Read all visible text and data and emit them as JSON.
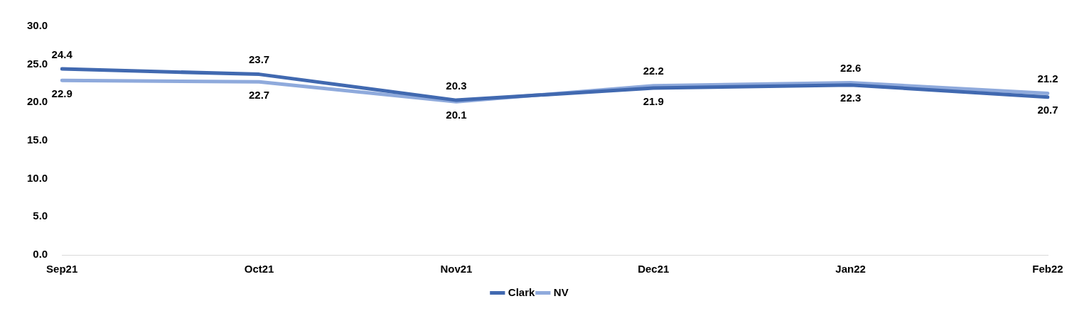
{
  "chart_data": {
    "type": "line",
    "categories": [
      "Sep21",
      "Oct21",
      "Nov21",
      "Dec21",
      "Jan22",
      "Feb22"
    ],
    "series": [
      {
        "name": "Clark",
        "color": "#4169b0",
        "values": [
          24.4,
          23.7,
          20.3,
          21.9,
          22.3,
          20.7
        ]
      },
      {
        "name": "NV",
        "color": "#8faadc",
        "values": [
          22.9,
          22.7,
          20.1,
          22.2,
          22.6,
          21.2
        ]
      }
    ],
    "ylim": [
      0,
      30
    ],
    "yticks": [
      {
        "value": 0,
        "label": "0.0"
      },
      {
        "value": 5,
        "label": "5.0"
      },
      {
        "value": 10,
        "label": "10.0"
      },
      {
        "value": 15,
        "label": "15.0"
      },
      {
        "value": 20,
        "label": "20.0"
      },
      {
        "value": 25,
        "label": "25.0"
      },
      {
        "value": 30,
        "label": "30.0"
      }
    ],
    "grid": false,
    "legend": "bottom",
    "data_labels": true,
    "marker": "none",
    "line_style": "solid"
  }
}
